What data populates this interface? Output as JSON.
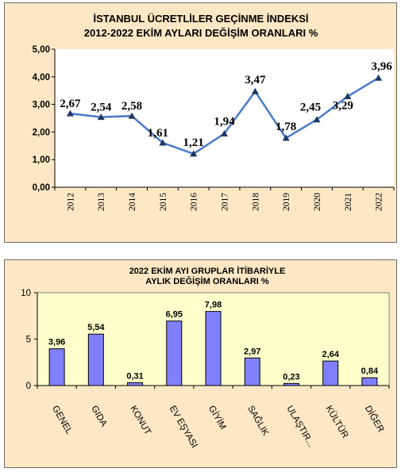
{
  "chart_data": [
    {
      "type": "line",
      "title": "İSTANBUL ÜCRETLİLER GEÇİNME İNDEKSİ",
      "subtitle": "2012-2022 EKİM AYLARI DEĞİŞİM ORANLARI %",
      "categories": [
        "2012",
        "2013",
        "2014",
        "2015",
        "2016",
        "2017",
        "2018",
        "2019",
        "2020",
        "2021",
        "2022"
      ],
      "values": [
        2.67,
        2.54,
        2.58,
        1.61,
        1.21,
        1.94,
        3.47,
        1.78,
        2.45,
        3.29,
        3.96
      ],
      "data_labels": [
        "2,67",
        "2,54",
        "2,58",
        "1,61",
        "1,21",
        "1,94",
        "3,47",
        "1,78",
        "2,45",
        "3,29",
        "3,96"
      ],
      "yticks": [
        "0,00",
        "1,00",
        "2,00",
        "3,00",
        "4,00",
        "5,00"
      ],
      "ylim": [
        0,
        5
      ],
      "grid": false,
      "colors": {
        "line": "#4a7ac8",
        "marker": "#1f3864",
        "plot_bg": "#ffffff",
        "panel_bg": "#fde7c4"
      }
    },
    {
      "type": "bar",
      "title": "2022 EKİM AYI GRUPLAR İTİBARİYLE",
      "subtitle": "AYLIK DEĞİŞİM ORANLARI %",
      "categories": [
        "GENEL",
        "GIDA",
        "KONUT",
        "EV EŞYASI",
        "GİYİM",
        "SAĞLIK",
        "ULAŞTIR...",
        "KÜLTÜR",
        "DİĞER"
      ],
      "values": [
        3.96,
        5.54,
        0.31,
        6.95,
        7.98,
        2.97,
        0.23,
        2.64,
        0.84
      ],
      "data_labels": [
        "3,96",
        "5,54",
        "0,31",
        "6,95",
        "7,98",
        "2,97",
        "0,23",
        "2,64",
        "0,84"
      ],
      "yticks": [
        "0",
        "5",
        "10"
      ],
      "ylim": [
        0,
        10
      ],
      "grid": false,
      "colors": {
        "bar": "#8080ff",
        "plot_bg": "#ffffcc",
        "panel_bg": "#fde7c4"
      }
    }
  ]
}
